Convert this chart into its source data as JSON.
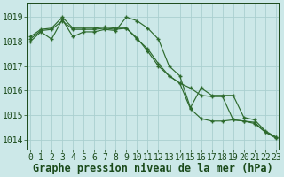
{
  "title": "Graphe pression niveau de la mer (hPa)",
  "xlabel_hours": [
    0,
    1,
    2,
    3,
    4,
    5,
    6,
    7,
    8,
    9,
    10,
    11,
    12,
    13,
    14,
    15,
    16,
    17,
    18,
    19,
    20,
    21,
    22,
    23
  ],
  "series": [
    [
      1018.2,
      1018.5,
      1018.55,
      1019.0,
      1018.55,
      1018.55,
      1018.55,
      1018.6,
      1018.55,
      1018.55,
      1018.15,
      1017.6,
      1017.0,
      1016.6,
      1016.3,
      1015.25,
      1014.85,
      1014.75,
      1014.75,
      1014.8,
      1014.75,
      1014.7,
      1014.3,
      1014.05
    ],
    [
      1018.1,
      1018.45,
      1018.5,
      1018.85,
      1018.5,
      1018.5,
      1018.5,
      1018.55,
      1018.5,
      1018.55,
      1018.1,
      1017.7,
      1017.1,
      1016.6,
      1016.3,
      1016.1,
      1015.8,
      1015.75,
      1015.75,
      1014.8,
      1014.75,
      1014.65,
      1014.3,
      1014.1
    ],
    [
      1018.0,
      1018.4,
      1018.1,
      1018.9,
      1018.2,
      1018.4,
      1018.4,
      1018.5,
      1018.45,
      1019.0,
      1018.85,
      1018.55,
      1018.1,
      1017.0,
      1016.6,
      1015.3,
      1016.1,
      1015.8,
      1015.8,
      1015.8,
      1014.9,
      1014.8,
      1014.35,
      1014.1
    ]
  ],
  "line_color": "#2d6a2d",
  "bg_color": "#cce8e8",
  "grid_color": "#aacfcf",
  "label_color": "#1a4a1a",
  "ylim": [
    1013.6,
    1019.6
  ],
  "yticks": [
    1014,
    1015,
    1016,
    1017,
    1018,
    1019
  ],
  "title_fontsize": 8.5,
  "tick_fontsize": 7.0
}
